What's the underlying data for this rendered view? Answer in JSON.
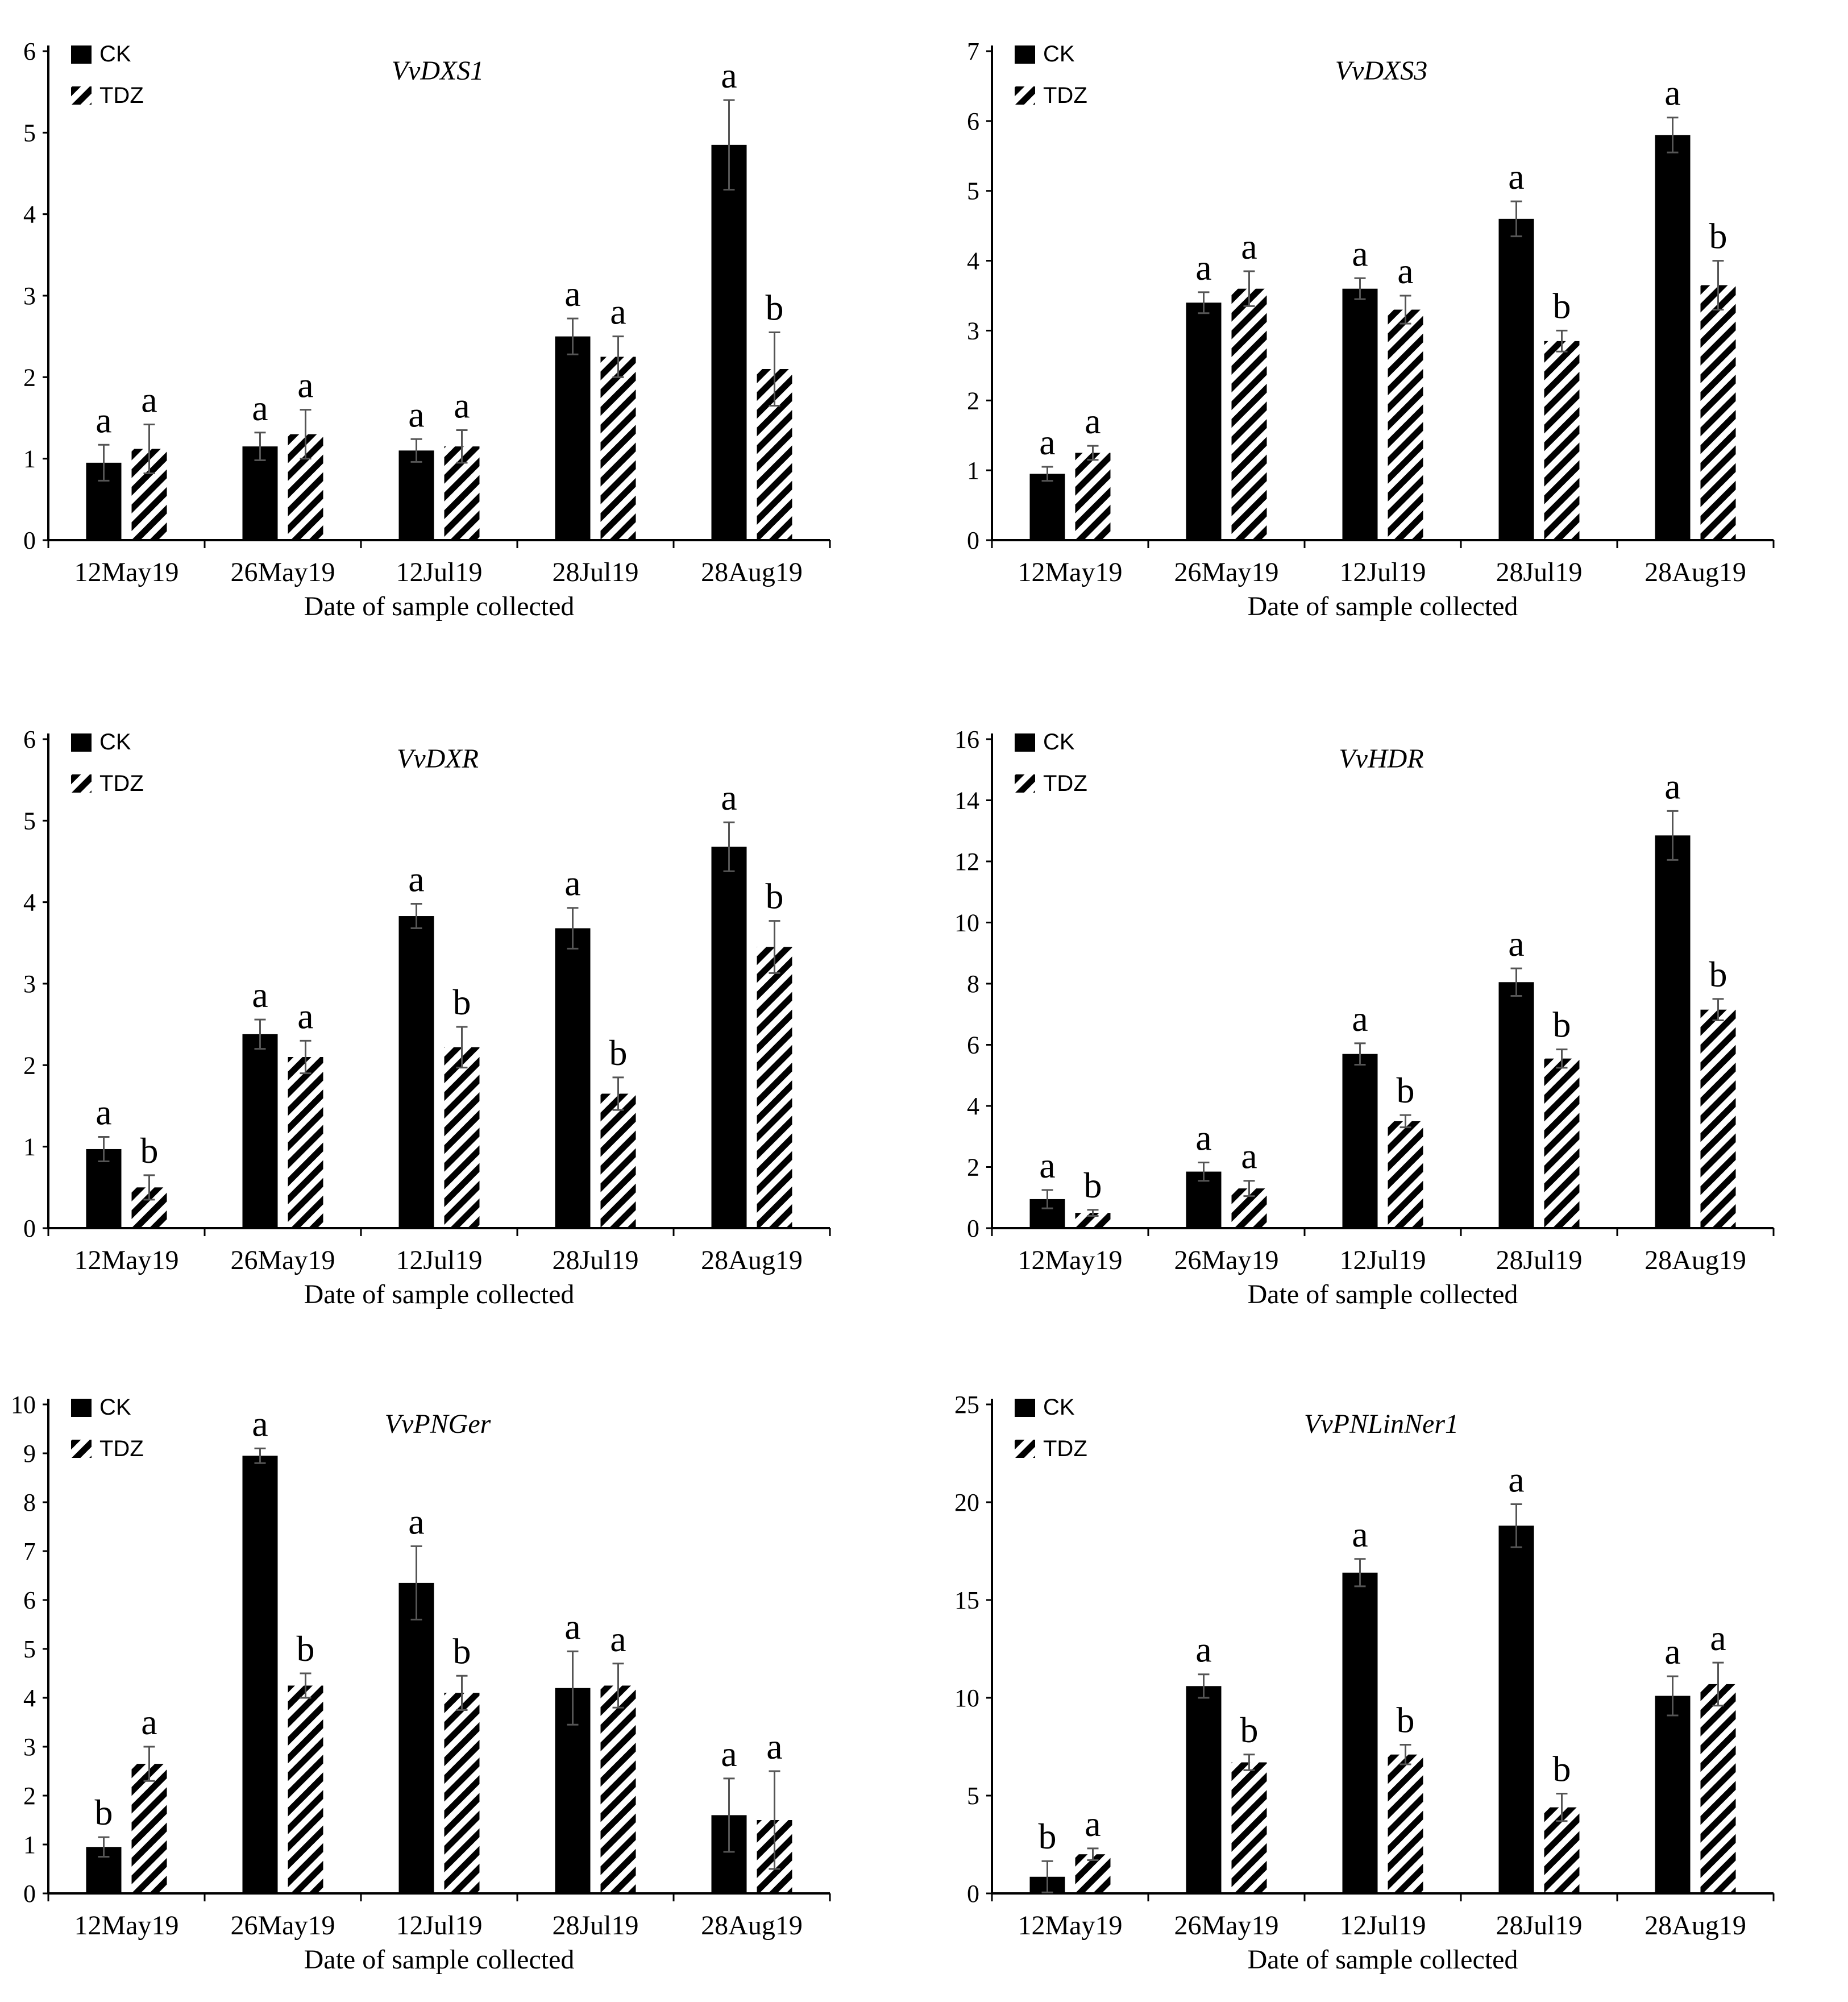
{
  "figure": {
    "legend_ck": "CK",
    "legend_tdz": "TDZ",
    "xlabel": "Date of sample collected",
    "categories": [
      "12May19",
      "26May19",
      "12Jul19",
      "28Jul19",
      "28Aug19"
    ]
  },
  "colors": {
    "ck": "#000000",
    "tdz_hatch": "#000000",
    "axis": "#000000",
    "background": "#ffffff"
  },
  "chart_data": [
    {
      "type": "bar",
      "title": "VvDXS1",
      "categories": [
        "12May19",
        "26May19",
        "12Jul19",
        "28Jul19",
        "28Aug19"
      ],
      "ylim": [
        0,
        6
      ],
      "yticks": [
        0,
        1,
        2,
        3,
        4,
        5,
        6
      ],
      "xlabel": "Date of sample collected",
      "ylabel": "",
      "series": [
        {
          "name": "CK",
          "values": [
            0.95,
            1.15,
            1.1,
            2.5,
            4.85
          ],
          "errors": [
            0.22,
            0.17,
            0.14,
            0.22,
            0.55
          ],
          "letters": [
            "a",
            "a",
            "a",
            "a",
            "a"
          ]
        },
        {
          "name": "TDZ",
          "values": [
            1.12,
            1.3,
            1.15,
            2.25,
            2.1
          ],
          "errors": [
            0.3,
            0.3,
            0.2,
            0.25,
            0.45
          ],
          "letters": [
            "a",
            "a",
            "a",
            "a",
            "b"
          ]
        }
      ]
    },
    {
      "type": "bar",
      "title": "VvDXS3",
      "categories": [
        "12May19",
        "26May19",
        "12Jul19",
        "28Jul19",
        "28Aug19"
      ],
      "ylim": [
        0,
        7
      ],
      "yticks": [
        0,
        1,
        2,
        3,
        4,
        5,
        6,
        7
      ],
      "xlabel": "Date of sample collected",
      "ylabel": "",
      "series": [
        {
          "name": "CK",
          "values": [
            0.95,
            3.4,
            3.6,
            4.6,
            5.8
          ],
          "errors": [
            0.1,
            0.15,
            0.15,
            0.25,
            0.25
          ],
          "letters": [
            "a",
            "a",
            "a",
            "a",
            "a"
          ]
        },
        {
          "name": "TDZ",
          "values": [
            1.25,
            3.6,
            3.3,
            2.85,
            3.65
          ],
          "errors": [
            0.1,
            0.25,
            0.2,
            0.15,
            0.35
          ],
          "letters": [
            "a",
            "a",
            "a",
            "b",
            "b"
          ]
        }
      ]
    },
    {
      "type": "bar",
      "title": "VvDXR",
      "categories": [
        "12May19",
        "26May19",
        "12Jul19",
        "28Jul19",
        "28Aug19"
      ],
      "ylim": [
        0,
        6
      ],
      "yticks": [
        0,
        1,
        2,
        3,
        4,
        5,
        6
      ],
      "xlabel": "Date of sample collected",
      "ylabel": "",
      "series": [
        {
          "name": "CK",
          "values": [
            0.97,
            2.38,
            3.83,
            3.68,
            4.68
          ],
          "errors": [
            0.15,
            0.18,
            0.15,
            0.25,
            0.3
          ],
          "letters": [
            "a",
            "a",
            "a",
            "a",
            "a"
          ]
        },
        {
          "name": "TDZ",
          "values": [
            0.5,
            2.1,
            2.22,
            1.65,
            3.45
          ],
          "errors": [
            0.15,
            0.2,
            0.25,
            0.2,
            0.32
          ],
          "letters": [
            "b",
            "a",
            "b",
            "b",
            "b"
          ]
        }
      ]
    },
    {
      "type": "bar",
      "title": "VvHDR",
      "categories": [
        "12May19",
        "26May19",
        "12Jul19",
        "28Jul19",
        "28Aug19"
      ],
      "ylim": [
        0,
        16
      ],
      "yticks": [
        0,
        2,
        4,
        6,
        8,
        10,
        12,
        14,
        16
      ],
      "xlabel": "Date of sample collected",
      "ylabel": "",
      "series": [
        {
          "name": "CK",
          "values": [
            0.95,
            1.85,
            5.7,
            8.05,
            12.85
          ],
          "errors": [
            0.3,
            0.3,
            0.35,
            0.45,
            0.8
          ],
          "letters": [
            "a",
            "a",
            "a",
            "a",
            "a"
          ]
        },
        {
          "name": "TDZ",
          "values": [
            0.5,
            1.3,
            3.5,
            5.55,
            7.15
          ],
          "errors": [
            0.1,
            0.25,
            0.2,
            0.3,
            0.35
          ],
          "letters": [
            "b",
            "a",
            "b",
            "b",
            "b"
          ]
        }
      ]
    },
    {
      "type": "bar",
      "title": "VvPNGer",
      "categories": [
        "12May19",
        "26May19",
        "12Jul19",
        "28Jul19",
        "28Aug19"
      ],
      "ylim": [
        0,
        10
      ],
      "yticks": [
        0,
        1,
        2,
        3,
        4,
        5,
        6,
        7,
        8,
        9,
        10
      ],
      "xlabel": "Date of sample collected",
      "ylabel": "",
      "series": [
        {
          "name": "CK",
          "values": [
            0.95,
            8.95,
            6.35,
            4.2,
            1.6
          ],
          "errors": [
            0.2,
            0.15,
            0.75,
            0.75,
            0.75
          ],
          "letters": [
            "b",
            "a",
            "a",
            "a",
            "a"
          ]
        },
        {
          "name": "TDZ",
          "values": [
            2.65,
            4.25,
            4.1,
            4.25,
            1.5
          ],
          "errors": [
            0.35,
            0.25,
            0.35,
            0.45,
            1.0
          ],
          "letters": [
            "a",
            "b",
            "b",
            "a",
            "a"
          ]
        }
      ]
    },
    {
      "type": "bar",
      "title": "VvPNLinNer1",
      "categories": [
        "12May19",
        "26May19",
        "12Jul19",
        "28Jul19",
        "28Aug19"
      ],
      "ylim": [
        0,
        25
      ],
      "yticks": [
        0,
        5,
        10,
        15,
        20,
        25
      ],
      "xlabel": "Date of sample collected",
      "ylabel": "",
      "series": [
        {
          "name": "CK",
          "values": [
            0.85,
            10.6,
            16.4,
            18.8,
            10.1
          ],
          "errors": [
            0.8,
            0.6,
            0.7,
            1.1,
            1.0
          ],
          "letters": [
            "b",
            "a",
            "a",
            "a",
            "a"
          ]
        },
        {
          "name": "TDZ",
          "values": [
            2.0,
            6.7,
            7.1,
            4.4,
            10.7
          ],
          "errors": [
            0.3,
            0.4,
            0.5,
            0.7,
            1.1
          ],
          "letters": [
            "a",
            "b",
            "b",
            "b",
            "a"
          ]
        }
      ]
    }
  ]
}
